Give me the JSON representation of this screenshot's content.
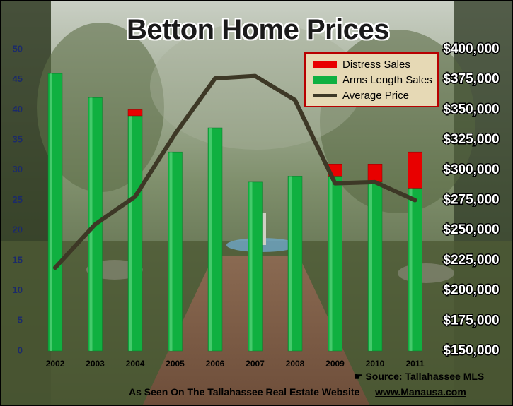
{
  "title": "Betton Home Prices",
  "source": "Source: Tallahassee MLS",
  "footer": {
    "text": "As Seen On The Tallahassee Real Estate Website",
    "site": "www.Manausa.com"
  },
  "chart_data": {
    "type": "bar",
    "categories": [
      "2002",
      "2003",
      "2004",
      "2005",
      "2006",
      "2007",
      "2008",
      "2009",
      "2010",
      "2011"
    ],
    "series": [
      {
        "name": "Distress Sales",
        "type": "bar",
        "stack": "sales",
        "color": "#e80000",
        "values": [
          0,
          0,
          1,
          0,
          0,
          0,
          0,
          2,
          3,
          6
        ]
      },
      {
        "name": "Arms Length Sales",
        "type": "bar",
        "stack": "sales",
        "color": "#10b040",
        "values": [
          46,
          42,
          39,
          33,
          37,
          28,
          29,
          29,
          28,
          27
        ]
      },
      {
        "name": "Average Price",
        "type": "line",
        "axis": "right",
        "color": "#3d3826",
        "values": [
          219000,
          255000,
          278000,
          330000,
          376000,
          378000,
          358000,
          289000,
          290000,
          275000
        ]
      }
    ],
    "y_left": {
      "ylim": [
        0,
        50
      ],
      "ticks": [
        "0",
        "5",
        "10",
        "15",
        "20",
        "25",
        "30",
        "35",
        "40",
        "45",
        "50"
      ]
    },
    "y_right": {
      "ylim": [
        150000,
        400000
      ],
      "ticks": [
        "$150,000",
        "$175,000",
        "$200,000",
        "$225,000",
        "$250,000",
        "$275,000",
        "$300,000",
        "$325,000",
        "$350,000",
        "$375,000",
        "$400,000"
      ]
    },
    "legend": "top-right",
    "grid": false
  }
}
